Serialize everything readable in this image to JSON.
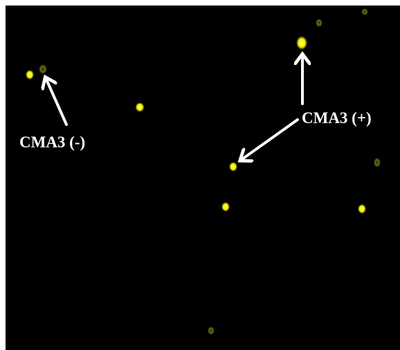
{
  "labels": {
    "negative": "CMA3 (-)",
    "positive": "CMA3 (+)"
  }
}
